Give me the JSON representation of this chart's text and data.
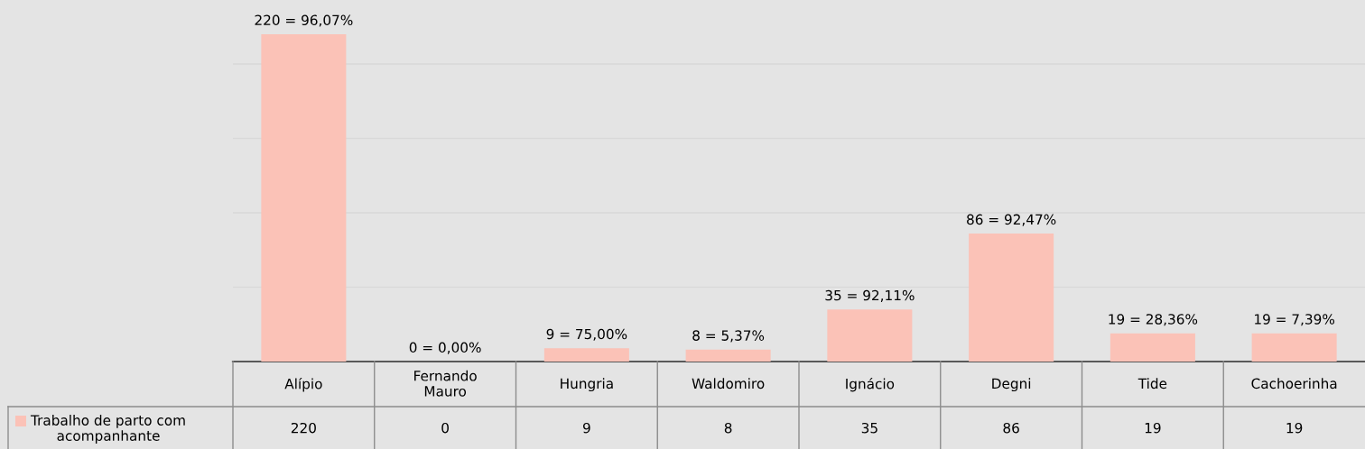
{
  "chart_data": {
    "type": "bar",
    "categories": [
      "Alípio",
      "Fernando\nMauro",
      "Hungria",
      "Waldomiro",
      "Ignácio",
      "Degni",
      "Tide",
      "Cachoerinha"
    ],
    "series": [
      {
        "name": "Trabalho de parto com\nacompanhante",
        "color": "#fbc2b7",
        "values": [
          220,
          0,
          9,
          8,
          35,
          86,
          19,
          19
        ]
      }
    ],
    "annotations": [
      {
        "text": "220 = 96,07%",
        "x": "Alípio",
        "y": 220
      },
      {
        "text": "0 = 0,00%",
        "x": "Fernando\nMauro",
        "y": 0
      },
      {
        "text": "9 = 75,00%",
        "x": "Hungria",
        "y": 9
      },
      {
        "text": "8 = 5,37%",
        "x": "Waldomiro",
        "y": 8
      },
      {
        "text": "35 = 92,11%",
        "x": "Ignácio",
        "y": 35
      },
      {
        "text": "86 = 92,47%",
        "x": "Degni",
        "y": 86
      },
      {
        "text": "19 = 28,36%",
        "x": "Tide",
        "y": 19
      },
      {
        "text": "19 = 7,39%",
        "x": "Cachoerinha",
        "y": 19
      }
    ],
    "data_labels": true,
    "ylim": [
      0,
      243
    ],
    "yticks": [
      {
        "value": 50,
        "label": null
      },
      {
        "value": 100,
        "label": null
      },
      {
        "value": 150,
        "label": null
      },
      {
        "value": 200,
        "label": null
      }
    ],
    "grid": "y",
    "tick_labels": "x"
  }
}
